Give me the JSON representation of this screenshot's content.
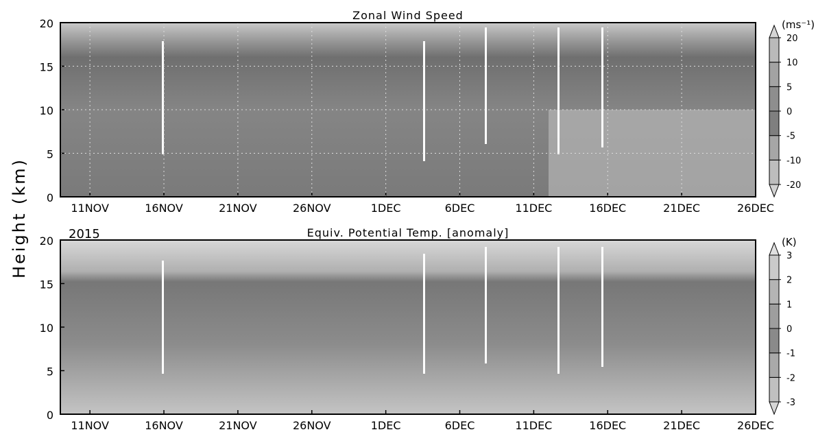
{
  "chart_data": [
    {
      "type": "time-height",
      "title": "Zonal Wind Speed",
      "y_label": "Height (km)",
      "year_label": "2015",
      "xlim": [
        "2015-11-09",
        "2015-12-26"
      ],
      "xticks": [
        {
          "value": "2015-11-11",
          "label": "11NOV"
        },
        {
          "value": "2015-11-16",
          "label": "16NOV"
        },
        {
          "value": "2015-11-21",
          "label": "21NOV"
        },
        {
          "value": "2015-11-26",
          "label": "26NOV"
        },
        {
          "value": "2015-12-01",
          "label": "1DEC"
        },
        {
          "value": "2015-12-06",
          "label": "6DEC"
        },
        {
          "value": "2015-12-11",
          "label": "11DEC"
        },
        {
          "value": "2015-12-16",
          "label": "16DEC"
        },
        {
          "value": "2015-12-21",
          "label": "21DEC"
        },
        {
          "value": "2015-12-26",
          "label": "26DEC"
        }
      ],
      "ylim": [
        0,
        20
      ],
      "yticks": [
        0,
        5,
        10,
        15,
        20
      ],
      "grid": true,
      "colorbar": {
        "unit": "(ms⁻¹)",
        "levels": [
          -20,
          -10,
          -5,
          0,
          5,
          10,
          20
        ],
        "colors": [
          "#d2d2d2",
          "#bdbdbd",
          "#a6a6a6",
          "#7f7f7f",
          "#8e8e8e",
          "#a3a3a3",
          "#bababa",
          "#d6d6d6"
        ]
      }
    },
    {
      "type": "time-height",
      "title": "Equiv. Potential Temp. [anomaly]",
      "xlim": [
        "2015-11-09",
        "2015-12-26"
      ],
      "xticks": [
        {
          "value": "2015-11-11",
          "label": "11NOV"
        },
        {
          "value": "2015-11-16",
          "label": "16NOV"
        },
        {
          "value": "2015-11-21",
          "label": "21NOV"
        },
        {
          "value": "2015-11-26",
          "label": "26NOV"
        },
        {
          "value": "2015-12-01",
          "label": "1DEC"
        },
        {
          "value": "2015-12-06",
          "label": "6DEC"
        },
        {
          "value": "2015-12-11",
          "label": "11DEC"
        },
        {
          "value": "2015-12-16",
          "label": "16DEC"
        },
        {
          "value": "2015-12-21",
          "label": "21DEC"
        },
        {
          "value": "2015-12-26",
          "label": "26DEC"
        }
      ],
      "ylim": [
        0,
        20
      ],
      "yticks": [
        0,
        5,
        10,
        15,
        20
      ],
      "grid": false,
      "colorbar": {
        "unit": "(K)",
        "levels": [
          -3,
          -2,
          -1,
          0,
          1,
          2,
          3
        ],
        "colors": [
          "#d6d6d6",
          "#c0c0c0",
          "#a9a9a9",
          "#8a8a8a",
          "#9e9e9e",
          "#b4b4b4",
          "#cacaca",
          "#e0e0e0"
        ]
      }
    }
  ]
}
